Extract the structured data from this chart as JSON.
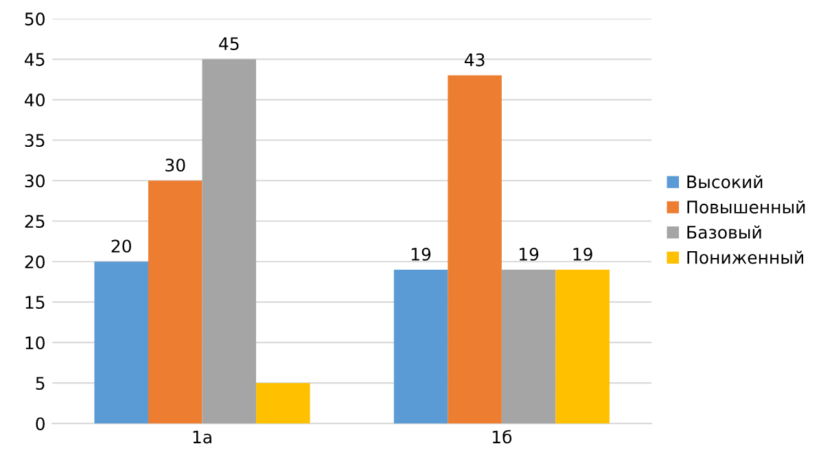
{
  "chart_data": {
    "type": "bar",
    "categories": [
      "1а",
      "1б"
    ],
    "series": [
      {
        "name": "Высокий",
        "color": "#5b9bd5",
        "values": [
          20,
          19
        ],
        "value_labels": [
          "20",
          "19"
        ]
      },
      {
        "name": "Повышенный",
        "color": "#ed7d31",
        "values": [
          30,
          43
        ],
        "value_labels": [
          "30",
          "43"
        ]
      },
      {
        "name": "Базовый",
        "color": "#a5a5a5",
        "values": [
          45,
          19
        ],
        "value_labels": [
          "45",
          "19"
        ]
      },
      {
        "name": "Пониженный",
        "color": "#ffc000",
        "values": [
          5,
          19
        ],
        "value_labels": [
          null,
          "19"
        ]
      }
    ],
    "ylim": [
      0,
      50
    ],
    "yticks": [
      0,
      5,
      10,
      15,
      20,
      25,
      30,
      35,
      40,
      45,
      50
    ],
    "grid": "y",
    "legend": "right"
  }
}
